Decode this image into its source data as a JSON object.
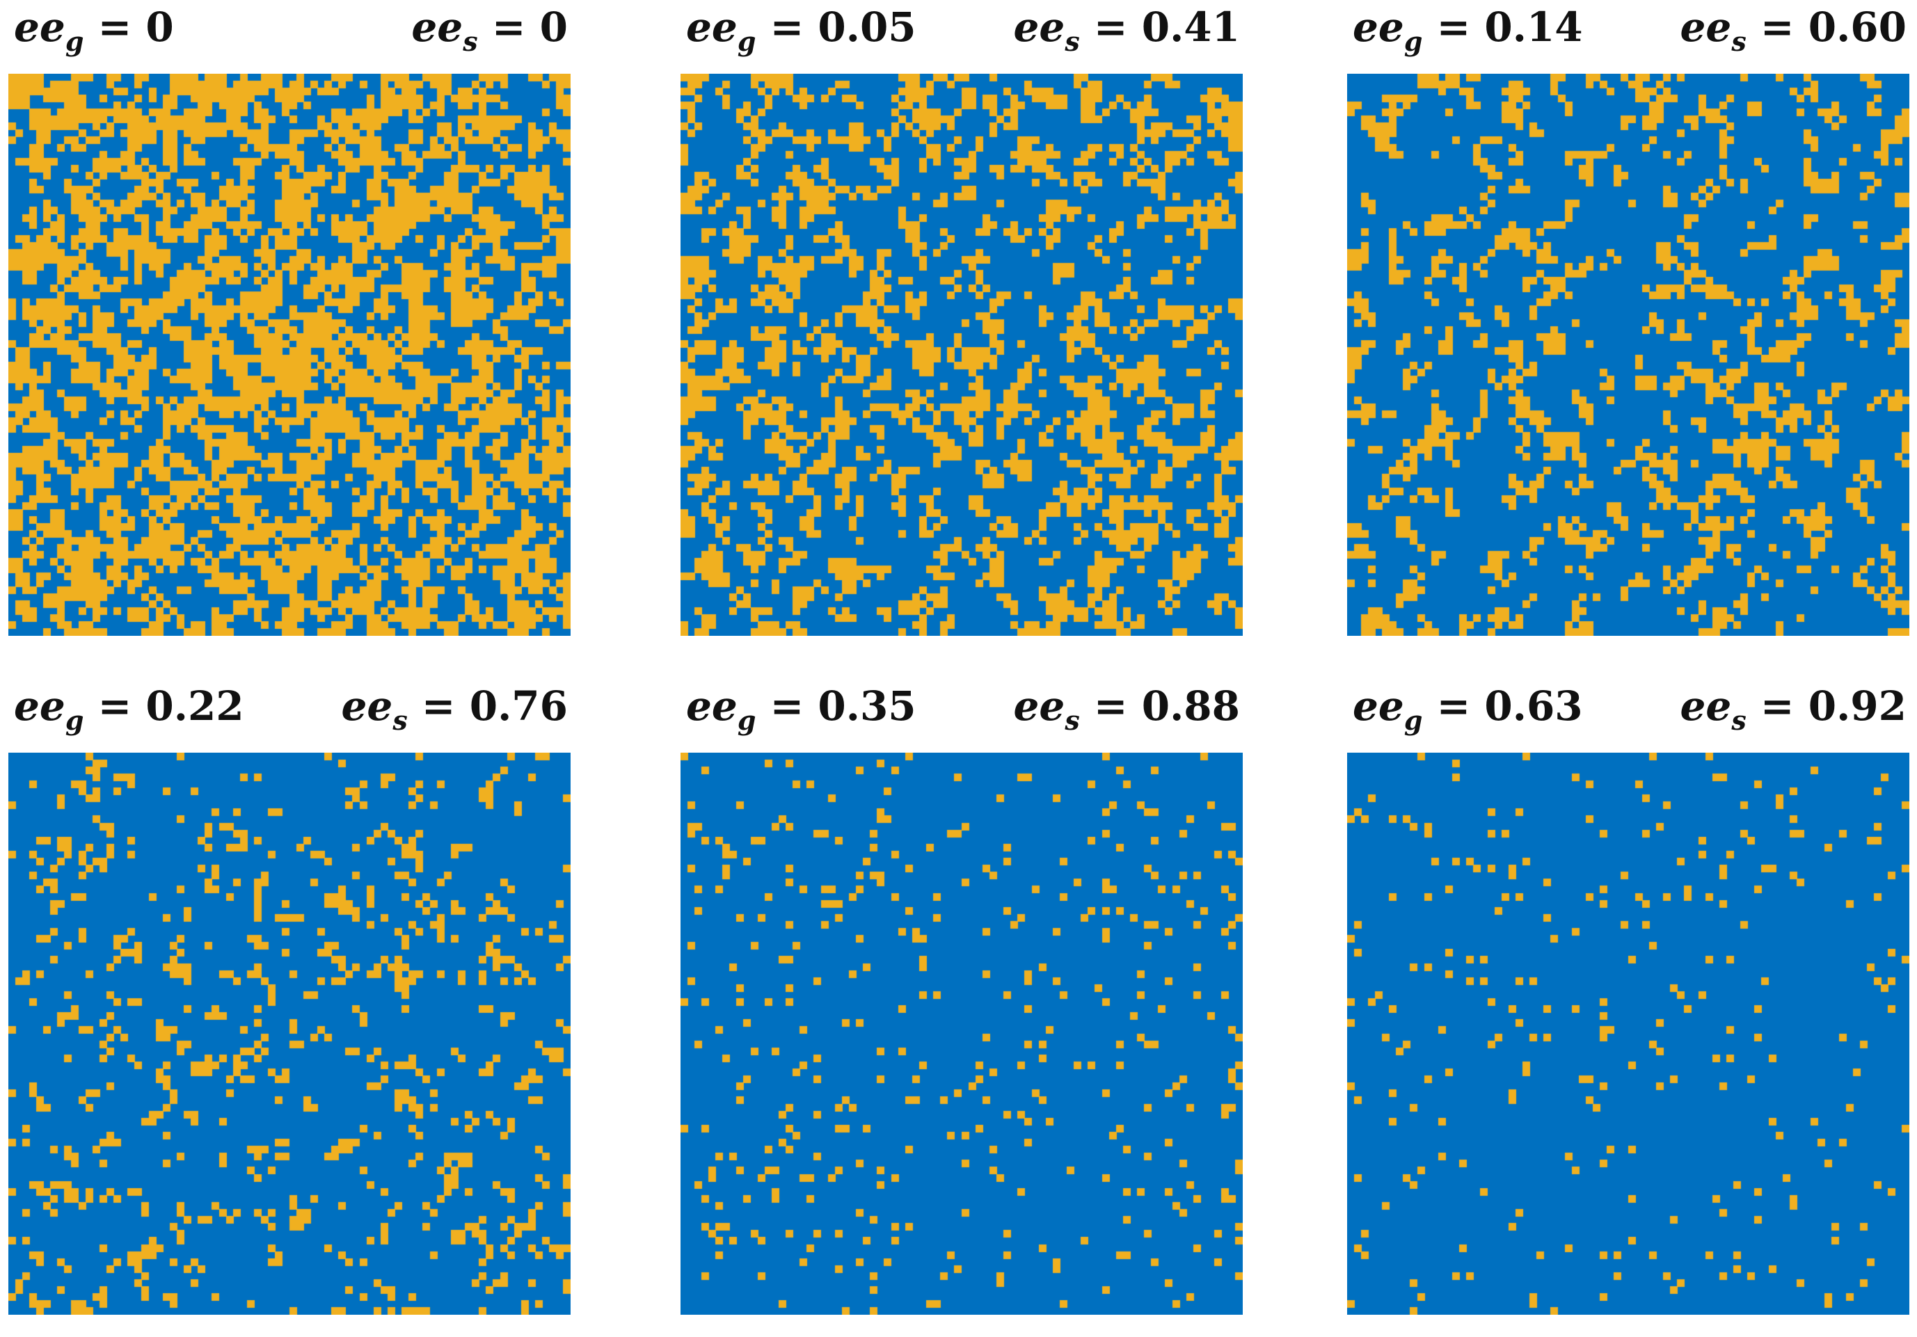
{
  "colors": {
    "majority": "#0070c0",
    "minority": "#f0b020",
    "background": "#ffffff",
    "text": "#111111"
  },
  "panels": [
    {
      "eeg_symbol": "ee",
      "eeg_sub": "g",
      "eeg_value": "0",
      "ees_symbol": "ee",
      "ees_sub": "s",
      "ees_value": "0",
      "minority_fraction": 0.5,
      "clustering": 0.6
    },
    {
      "eeg_symbol": "ee",
      "eeg_sub": "g",
      "eeg_value": "0.05",
      "ees_symbol": "ee",
      "ees_sub": "s",
      "ees_value": "0.41",
      "minority_fraction": 0.3,
      "clustering": 0.5
    },
    {
      "eeg_symbol": "ee",
      "eeg_sub": "g",
      "eeg_value": "0.14",
      "ees_symbol": "ee",
      "ees_sub": "s",
      "ees_value": "0.60",
      "minority_fraction": 0.2,
      "clustering": 0.4
    },
    {
      "eeg_symbol": "ee",
      "eeg_sub": "g",
      "eeg_value": "0.22",
      "ees_symbol": "ee",
      "ees_sub": "s",
      "ees_value": "0.76",
      "minority_fraction": 0.12,
      "clustering": 0.25
    },
    {
      "eeg_symbol": "ee",
      "eeg_sub": "g",
      "eeg_value": "0.35",
      "ees_symbol": "ee",
      "ees_sub": "s",
      "ees_value": "0.88",
      "minority_fraction": 0.06,
      "clustering": 0.1
    },
    {
      "eeg_symbol": "ee",
      "eeg_sub": "g",
      "eeg_value": "0.63",
      "ees_symbol": "ee",
      "ees_sub": "s",
      "ees_value": "0.92",
      "minority_fraction": 0.04,
      "clustering": 0.05
    }
  ],
  "equals_sign": "="
}
